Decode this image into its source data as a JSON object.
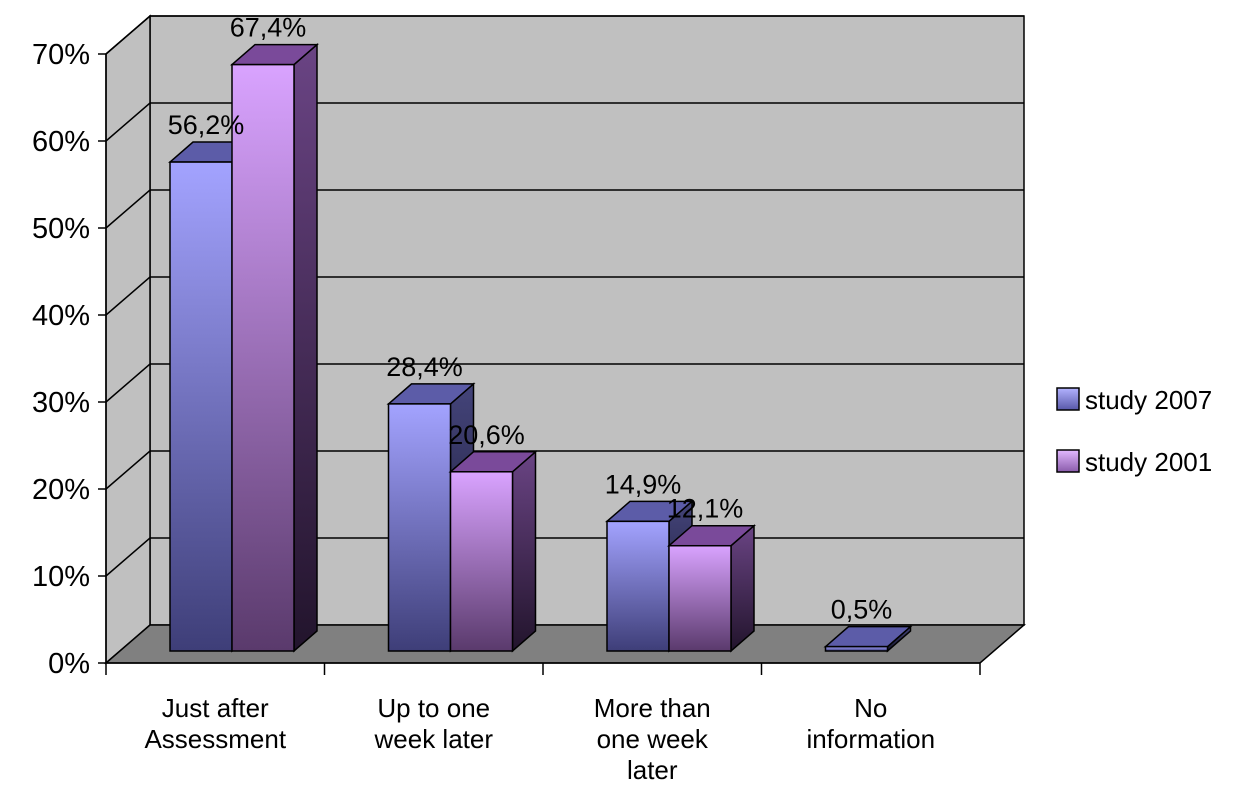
{
  "chart_data": {
    "type": "bar",
    "three_d": true,
    "categories": [
      [
        "Just after",
        "Assessment"
      ],
      [
        "Up to one",
        "week later"
      ],
      [
        "More than",
        "one week",
        "later"
      ],
      [
        "No",
        "information"
      ]
    ],
    "series": [
      {
        "name": "study 2007",
        "values": [
          56.2,
          28.4,
          14.9,
          0.5
        ],
        "labels": [
          "56,2%",
          "28,4%",
          "14,9%",
          "0,5%"
        ],
        "color": "#9999ff"
      },
      {
        "name": "study 2001",
        "values": [
          67.4,
          20.6,
          12.1,
          null
        ],
        "labels": [
          "67,4%",
          "20,6%",
          "12,1%",
          ""
        ],
        "color": "#cc99ff"
      }
    ],
    "y_ticks": [
      "0%",
      "10%",
      "20%",
      "30%",
      "40%",
      "50%",
      "60%",
      "70%"
    ],
    "ylim": [
      0,
      70
    ],
    "grid": true,
    "legend_position": "right",
    "wall_color": "#c0c0c0",
    "floor_color": "#808080"
  }
}
